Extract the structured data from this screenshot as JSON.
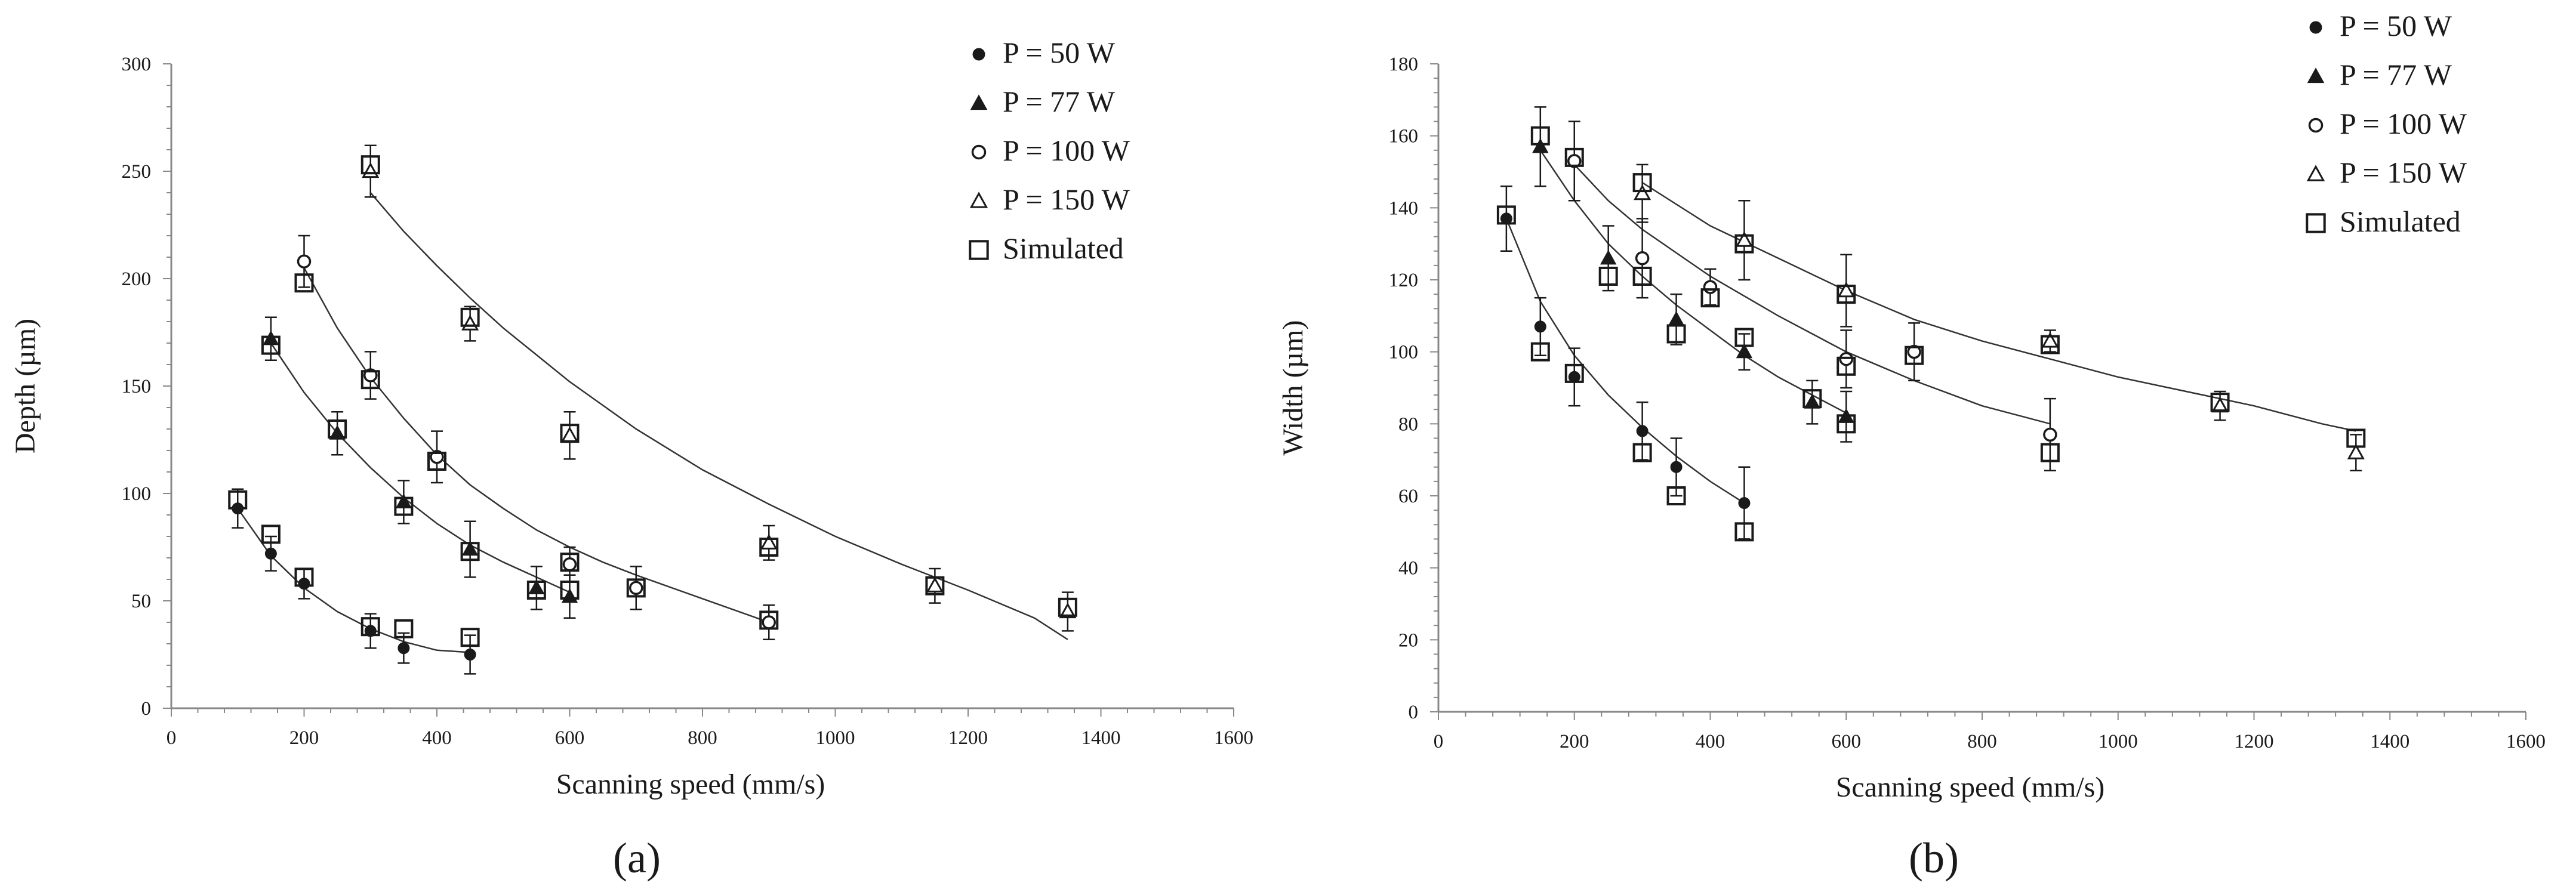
{
  "chart_data": [
    {
      "type": "scatter",
      "panel_label": "(a)",
      "xlabel": "Scanning speed (mm/s)",
      "ylabel": "Depth (µm)",
      "xlim": [
        0,
        1600
      ],
      "ylim": [
        0,
        300
      ],
      "xticks": [
        0,
        200,
        400,
        600,
        800,
        1000,
        1200,
        1400,
        1600
      ],
      "yticks": [
        0,
        50,
        100,
        150,
        200,
        250,
        300
      ],
      "legend_position": "top-right",
      "grid": false,
      "series": [
        {
          "name": "P = 50 W",
          "marker": "filled-circle",
          "points": [
            {
              "x": 100,
              "y": 93,
              "err": 9
            },
            {
              "x": 150,
              "y": 72,
              "err": 8
            },
            {
              "x": 200,
              "y": 58,
              "err": 7
            },
            {
              "x": 300,
              "y": 36,
              "err": 8
            },
            {
              "x": 350,
              "y": 28,
              "err": 7
            },
            {
              "x": 450,
              "y": 25,
              "err": 9
            }
          ]
        },
        {
          "name": "P = 77 W",
          "marker": "filled-triangle",
          "points": [
            {
              "x": 150,
              "y": 172,
              "err": 10
            },
            {
              "x": 250,
              "y": 128,
              "err": 10
            },
            {
              "x": 350,
              "y": 96,
              "err": 10
            },
            {
              "x": 450,
              "y": 74,
              "err": 13
            },
            {
              "x": 550,
              "y": 56,
              "err": 10
            },
            {
              "x": 600,
              "y": 52,
              "err": 10
            }
          ]
        },
        {
          "name": "P = 100 W",
          "marker": "open-circle",
          "points": [
            {
              "x": 200,
              "y": 208,
              "err": 12
            },
            {
              "x": 300,
              "y": 155,
              "err": 11
            },
            {
              "x": 400,
              "y": 117,
              "err": 12
            },
            {
              "x": 600,
              "y": 67,
              "err": 8
            },
            {
              "x": 700,
              "y": 56,
              "err": 10
            },
            {
              "x": 900,
              "y": 40,
              "err": 8
            }
          ]
        },
        {
          "name": "P = 150 W",
          "marker": "open-triangle",
          "points": [
            {
              "x": 300,
              "y": 250,
              "err": 12
            },
            {
              "x": 450,
              "y": 179,
              "err": 8
            },
            {
              "x": 600,
              "y": 127,
              "err": 11
            },
            {
              "x": 900,
              "y": 77,
              "err": 8
            },
            {
              "x": 1150,
              "y": 57,
              "err": 8
            },
            {
              "x": 1350,
              "y": 45,
              "err": 9
            }
          ]
        },
        {
          "name": "Simulated",
          "marker": "open-square",
          "points": [
            {
              "x": 100,
              "y": 97
            },
            {
              "x": 150,
              "y": 81
            },
            {
              "x": 200,
              "y": 61
            },
            {
              "x": 300,
              "y": 38
            },
            {
              "x": 350,
              "y": 37
            },
            {
              "x": 450,
              "y": 33
            },
            {
              "x": 150,
              "y": 169
            },
            {
              "x": 250,
              "y": 130
            },
            {
              "x": 350,
              "y": 94
            },
            {
              "x": 450,
              "y": 73
            },
            {
              "x": 550,
              "y": 55
            },
            {
              "x": 600,
              "y": 55
            },
            {
              "x": 200,
              "y": 198
            },
            {
              "x": 300,
              "y": 153
            },
            {
              "x": 400,
              "y": 115
            },
            {
              "x": 600,
              "y": 68
            },
            {
              "x": 700,
              "y": 56
            },
            {
              "x": 900,
              "y": 41
            },
            {
              "x": 300,
              "y": 253
            },
            {
              "x": 450,
              "y": 182
            },
            {
              "x": 600,
              "y": 128
            },
            {
              "x": 900,
              "y": 75
            },
            {
              "x": 1150,
              "y": 57
            },
            {
              "x": 1350,
              "y": 47
            }
          ]
        }
      ],
      "fit_curves": [
        {
          "points": [
            [
              100,
              93
            ],
            [
              150,
              71
            ],
            [
              200,
              56
            ],
            [
              250,
              45
            ],
            [
              300,
              37
            ],
            [
              350,
              31
            ],
            [
              400,
              27
            ],
            [
              450,
              26
            ]
          ]
        },
        {
          "points": [
            [
              150,
              170
            ],
            [
              200,
              147
            ],
            [
              250,
              128
            ],
            [
              300,
              112
            ],
            [
              350,
              98
            ],
            [
              400,
              86
            ],
            [
              450,
              76
            ],
            [
              500,
              68
            ],
            [
              550,
              61
            ],
            [
              600,
              54
            ]
          ]
        },
        {
          "points": [
            [
              200,
              205
            ],
            [
              250,
              177
            ],
            [
              300,
              154
            ],
            [
              350,
              135
            ],
            [
              400,
              118
            ],
            [
              450,
              104
            ],
            [
              500,
              93
            ],
            [
              550,
              83
            ],
            [
              600,
              75
            ],
            [
              650,
              68
            ],
            [
              700,
              62
            ],
            [
              800,
              51
            ],
            [
              900,
              40
            ]
          ]
        },
        {
          "points": [
            [
              300,
              240
            ],
            [
              350,
              222
            ],
            [
              400,
              206
            ],
            [
              450,
              191
            ],
            [
              500,
              177
            ],
            [
              600,
              152
            ],
            [
              700,
              130
            ],
            [
              800,
              111
            ],
            [
              900,
              95
            ],
            [
              1000,
              80
            ],
            [
              1100,
              67
            ],
            [
              1200,
              55
            ],
            [
              1300,
              42
            ],
            [
              1350,
              32
            ]
          ]
        }
      ]
    },
    {
      "type": "scatter",
      "panel_label": "(b)",
      "xlabel": "Scanning speed (mm/s)",
      "ylabel": "Width (µm)",
      "xlim": [
        0,
        1600
      ],
      "ylim": [
        0,
        180
      ],
      "xticks": [
        0,
        200,
        400,
        600,
        800,
        1000,
        1200,
        1400,
        1600
      ],
      "yticks": [
        0,
        20,
        40,
        60,
        80,
        100,
        120,
        140,
        160,
        180
      ],
      "legend_position": "top-right",
      "grid": false,
      "series": [
        {
          "name": "P = 50 W",
          "marker": "filled-circle",
          "points": [
            {
              "x": 100,
              "y": 137,
              "err": 9
            },
            {
              "x": 150,
              "y": 107,
              "err": 8
            },
            {
              "x": 200,
              "y": 93,
              "err": 8
            },
            {
              "x": 300,
              "y": 78,
              "err": 8
            },
            {
              "x": 350,
              "y": 68,
              "err": 8
            },
            {
              "x": 450,
              "y": 58,
              "err": 10
            }
          ]
        },
        {
          "name": "P = 77 W",
          "marker": "filled-triangle",
          "points": [
            {
              "x": 150,
              "y": 157,
              "err": 11
            },
            {
              "x": 250,
              "y": 126,
              "err": 9
            },
            {
              "x": 350,
              "y": 109,
              "err": 7
            },
            {
              "x": 450,
              "y": 100,
              "err": 5
            },
            {
              "x": 550,
              "y": 86,
              "err": 6
            },
            {
              "x": 600,
              "y": 82,
              "err": 7
            }
          ]
        },
        {
          "name": "P = 100 W",
          "marker": "open-circle",
          "points": [
            {
              "x": 200,
              "y": 153,
              "err": 11
            },
            {
              "x": 300,
              "y": 126,
              "err": 11
            },
            {
              "x": 400,
              "y": 118,
              "err": 5
            },
            {
              "x": 600,
              "y": 98,
              "err": 8
            },
            {
              "x": 700,
              "y": 100,
              "err": 8
            },
            {
              "x": 900,
              "y": 77,
              "err": 10
            }
          ]
        },
        {
          "name": "P = 150 W",
          "marker": "open-triangle",
          "points": [
            {
              "x": 300,
              "y": 144,
              "err": 8
            },
            {
              "x": 450,
              "y": 131,
              "err": 11
            },
            {
              "x": 600,
              "y": 117,
              "err": 10
            },
            {
              "x": 900,
              "y": 103,
              "err": 3
            },
            {
              "x": 1150,
              "y": 85,
              "err": 4
            },
            {
              "x": 1350,
              "y": 72,
              "err": 5
            }
          ]
        },
        {
          "name": "Simulated",
          "marker": "open-square",
          "points": [
            {
              "x": 100,
              "y": 138
            },
            {
              "x": 150,
              "y": 100
            },
            {
              "x": 200,
              "y": 94
            },
            {
              "x": 300,
              "y": 72
            },
            {
              "x": 350,
              "y": 60
            },
            {
              "x": 450,
              "y": 50
            },
            {
              "x": 150,
              "y": 160
            },
            {
              "x": 250,
              "y": 121
            },
            {
              "x": 350,
              "y": 105
            },
            {
              "x": 450,
              "y": 104
            },
            {
              "x": 550,
              "y": 87
            },
            {
              "x": 600,
              "y": 80
            },
            {
              "x": 200,
              "y": 154
            },
            {
              "x": 300,
              "y": 121
            },
            {
              "x": 400,
              "y": 115
            },
            {
              "x": 600,
              "y": 96
            },
            {
              "x": 700,
              "y": 99
            },
            {
              "x": 900,
              "y": 72
            },
            {
              "x": 300,
              "y": 147
            },
            {
              "x": 450,
              "y": 130
            },
            {
              "x": 600,
              "y": 116
            },
            {
              "x": 900,
              "y": 102
            },
            {
              "x": 1150,
              "y": 86
            },
            {
              "x": 1350,
              "y": 76
            }
          ]
        }
      ],
      "fit_curves": [
        {
          "points": [
            [
              100,
              137
            ],
            [
              150,
              114
            ],
            [
              200,
              99
            ],
            [
              250,
              88
            ],
            [
              300,
              79
            ],
            [
              350,
              71
            ],
            [
              400,
              64
            ],
            [
              450,
              58
            ]
          ]
        },
        {
          "points": [
            [
              150,
              156
            ],
            [
              200,
              142
            ],
            [
              250,
              130
            ],
            [
              300,
              121
            ],
            [
              350,
              113
            ],
            [
              400,
              106
            ],
            [
              450,
              99
            ],
            [
              500,
              93
            ],
            [
              550,
              88
            ],
            [
              600,
              83
            ]
          ]
        },
        {
          "points": [
            [
              200,
              152
            ],
            [
              250,
              142
            ],
            [
              300,
              134
            ],
            [
              400,
              121
            ],
            [
              500,
              110
            ],
            [
              600,
              100
            ],
            [
              700,
              92
            ],
            [
              800,
              85
            ],
            [
              900,
              80
            ]
          ]
        },
        {
          "points": [
            [
              300,
              147
            ],
            [
              400,
              135
            ],
            [
              500,
              126
            ],
            [
              600,
              117
            ],
            [
              700,
              109
            ],
            [
              800,
              103
            ],
            [
              900,
              98
            ],
            [
              1000,
              93
            ],
            [
              1100,
              89
            ],
            [
              1200,
              85
            ],
            [
              1300,
              80
            ],
            [
              1350,
              78
            ]
          ]
        }
      ]
    }
  ]
}
